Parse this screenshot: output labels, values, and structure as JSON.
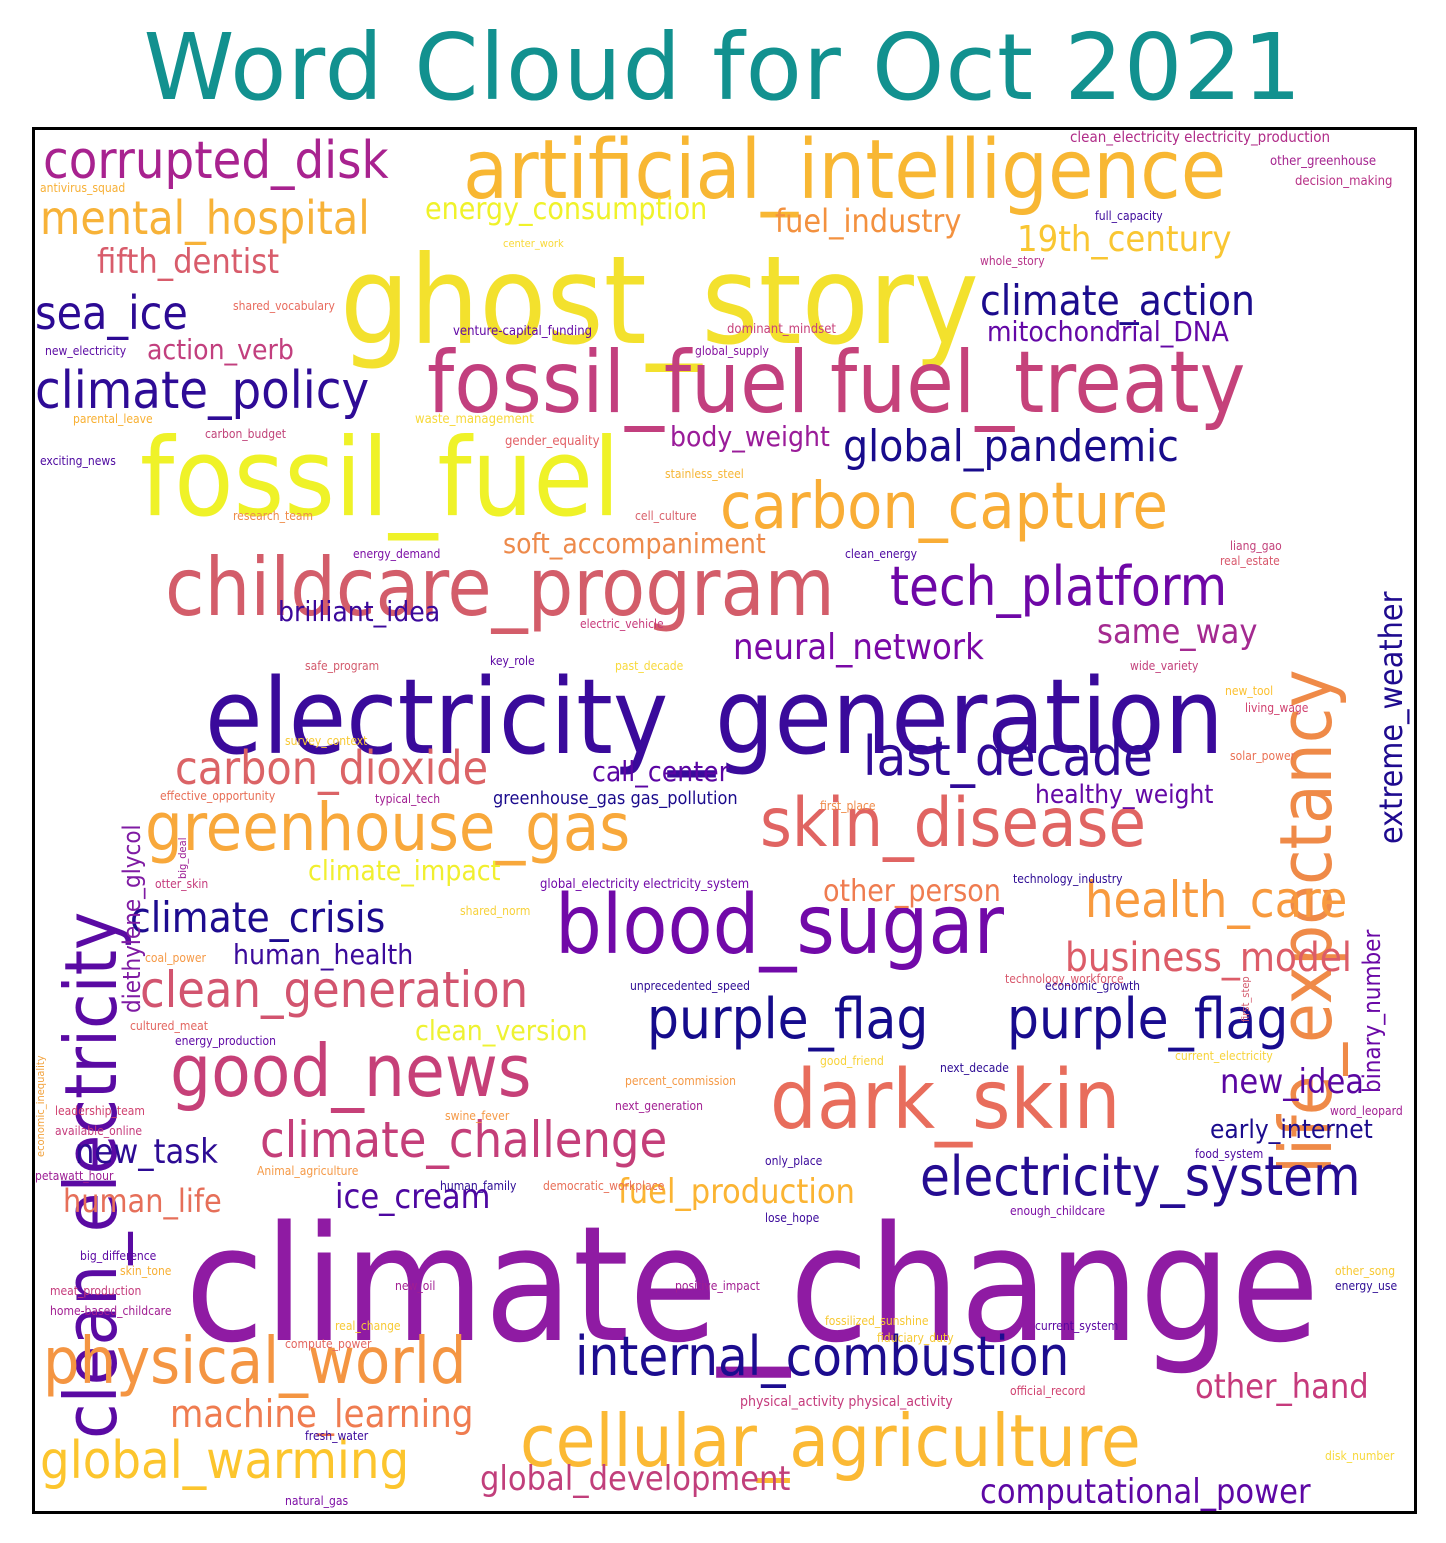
{
  "title": "Word Cloud for Oct 2021",
  "title_color": "#12918f",
  "border_color": "#000000",
  "palette": "plasma",
  "words": [
    {
      "text": "climate_change",
      "color": "#8f1ba3"
    },
    {
      "text": "electricity_generation",
      "color": "#3a0a9b"
    },
    {
      "text": "ghost_story",
      "color": "#f3e12d"
    },
    {
      "text": "fossil_fuel",
      "color": "#eff228"
    },
    {
      "text": "fossil_fuel",
      "color": "#c23f7e"
    },
    {
      "text": "fuel_treaty",
      "color": "#c5427a"
    },
    {
      "text": "artificial_intelligence",
      "color": "#f8b733"
    },
    {
      "text": "life_expectancy",
      "color": "#ef8a48"
    },
    {
      "text": "childcare_program",
      "color": "#d35d6a"
    },
    {
      "text": "clean_electricity",
      "color": "#5a0aa3"
    },
    {
      "text": "dark_skin",
      "color": "#e86d5c"
    },
    {
      "text": "blood_sugar",
      "color": "#7109a8"
    },
    {
      "text": "skin_disease",
      "color": "#e06462"
    },
    {
      "text": "cellular_agriculture",
      "color": "#fbb934"
    },
    {
      "text": "greenhouse_gas",
      "color": "#f8a83b"
    },
    {
      "text": "carbon_capture",
      "color": "#f9ad36"
    },
    {
      "text": "physical_world",
      "color": "#f49542"
    },
    {
      "text": "good_news",
      "color": "#c64078"
    },
    {
      "text": "internal_combustion",
      "color": "#1c0c8f"
    },
    {
      "text": "purple_flag",
      "color": "#150b8c"
    },
    {
      "text": "purple_flag",
      "color": "#180b8e"
    },
    {
      "text": "electricity_system",
      "color": "#250c92"
    },
    {
      "text": "tech_platform",
      "color": "#6e07a6"
    },
    {
      "text": "climate_policy",
      "color": "#2e0b96"
    },
    {
      "text": "global_warming",
      "color": "#fcc52d"
    },
    {
      "text": "corrupted_disk",
      "color": "#a8228f"
    },
    {
      "text": "last_decade",
      "color": "#2f0a97"
    },
    {
      "text": "climate_challenge",
      "color": "#c43e79"
    },
    {
      "text": "carbon_dioxide",
      "color": "#db6366"
    },
    {
      "text": "clean_generation",
      "color": "#d2546f"
    },
    {
      "text": "health_care",
      "color": "#f89a3e"
    },
    {
      "text": "mental_hospital",
      "color": "#f7b238"
    },
    {
      "text": "extreme_weather",
      "color": "#1f0b8f"
    },
    {
      "text": "climate_crisis",
      "color": "#1d0b8f"
    },
    {
      "text": "business_model",
      "color": "#dc5c68"
    },
    {
      "text": "global_pandemic",
      "color": "#180b8c"
    },
    {
      "text": "climate_action",
      "color": "#1b0b8d"
    },
    {
      "text": "sea_ice",
      "color": "#2c0a94"
    },
    {
      "text": "computational_power",
      "color": "#5d07a4"
    },
    {
      "text": "machine_learning",
      "color": "#ef7c50"
    },
    {
      "text": "global_development",
      "color": "#c13f7b"
    },
    {
      "text": "fifth_dentist",
      "color": "#d85c6b"
    },
    {
      "text": "19th_century",
      "color": "#f9c632"
    },
    {
      "text": "fuel_industry",
      "color": "#f3913f"
    },
    {
      "text": "neural_network",
      "color": "#7a08a6"
    },
    {
      "text": "same_way",
      "color": "#a42a90"
    },
    {
      "text": "fuel_production",
      "color": "#fbb433"
    },
    {
      "text": "other_hand",
      "color": "#c63a7c"
    },
    {
      "text": "new_idea",
      "color": "#5a06a1"
    },
    {
      "text": "human_life",
      "color": "#e66f59"
    },
    {
      "text": "ice_cream",
      "color": "#4d07a1"
    },
    {
      "text": "new_task",
      "color": "#2d0b94"
    },
    {
      "text": "energy_consumption",
      "color": "#f0f22a"
    },
    {
      "text": "mitochondrial_DNA",
      "color": "#6408a6"
    },
    {
      "text": "body_weight",
      "color": "#9a1c99"
    },
    {
      "text": "carbon_dioxide",
      "color": "#db6366"
    },
    {
      "text": "soft_accompaniment",
      "color": "#ed8a4b"
    },
    {
      "text": "brilliant_idea",
      "color": "#3b099b"
    },
    {
      "text": "call_center",
      "color": "#5b05a3"
    },
    {
      "text": "healthy_weight",
      "color": "#6309a6"
    },
    {
      "text": "binary_number",
      "color": "#6a08a6"
    },
    {
      "text": "diethylene_glycol",
      "color": "#7f1ba3"
    },
    {
      "text": "action_verb",
      "color": "#c23f7e"
    },
    {
      "text": "climate_impact",
      "color": "#f1ef2f"
    },
    {
      "text": "human_health",
      "color": "#3b0a9b"
    },
    {
      "text": "clean_version",
      "color": "#eef233"
    },
    {
      "text": "other_person",
      "color": "#ef7c50"
    },
    {
      "text": "early_internet",
      "color": "#1b0b8d"
    },
    {
      "text": "greenhouse_gas gas_pollution",
      "color": "#1b0b8d"
    },
    {
      "text": "clean_electricity electricity_production",
      "color": "#b02c88"
    },
    {
      "text": "other_greenhouse",
      "color": "#a4228f"
    },
    {
      "text": "decision_making",
      "color": "#b72f85"
    },
    {
      "text": "antivirus_squad",
      "color": "#f7b036"
    },
    {
      "text": "full_capacity",
      "color": "#3d099b"
    },
    {
      "text": "center_work",
      "color": "#f8d93a"
    },
    {
      "text": "whole_story",
      "color": "#b7338a"
    },
    {
      "text": "shared_vocabulary",
      "color": "#e86b5e"
    },
    {
      "text": "venture-capital_funding",
      "color": "#6209a5"
    },
    {
      "text": "dominant_mindset",
      "color": "#c7417a"
    },
    {
      "text": "new_electricity",
      "color": "#5a0aa3"
    },
    {
      "text": "global_supply",
      "color": "#8714a0"
    },
    {
      "text": "parental_leave",
      "color": "#f8b032"
    },
    {
      "text": "waste_management",
      "color": "#f7d93a"
    },
    {
      "text": "carbon_budget",
      "color": "#c14379"
    },
    {
      "text": "gender_equality",
      "color": "#e25f65"
    },
    {
      "text": "exciting_news",
      "color": "#4c079f"
    },
    {
      "text": "stainless_steel",
      "color": "#f6b636"
    },
    {
      "text": "cell_culture",
      "color": "#d9606a"
    },
    {
      "text": "research_team",
      "color": "#ee8b48"
    },
    {
      "text": "energy_demand",
      "color": "#7c0ea5"
    },
    {
      "text": "clean_energy",
      "color": "#4c07a0"
    },
    {
      "text": "liang_gao",
      "color": "#c3427b"
    },
    {
      "text": "real_estate",
      "color": "#d8586c"
    },
    {
      "text": "electric_vehicle",
      "color": "#c7397a"
    },
    {
      "text": "big_deal",
      "color": "#9c1e95"
    },
    {
      "text": "safe_program",
      "color": "#d35a6c"
    },
    {
      "text": "key_role",
      "color": "#5a05a2"
    },
    {
      "text": "past_decade",
      "color": "#f8d93b"
    },
    {
      "text": "wide_variety",
      "color": "#c3407b"
    },
    {
      "text": "new_tool",
      "color": "#fcc131"
    },
    {
      "text": "living_wage",
      "color": "#d0416f"
    },
    {
      "text": "survey_context",
      "color": "#f7c934"
    },
    {
      "text": "solar_power",
      "color": "#ea7053"
    },
    {
      "text": "effective_opportunity",
      "color": "#e86e56"
    },
    {
      "text": "typical_tech",
      "color": "#a11e92"
    },
    {
      "text": "first_place",
      "color": "#ef8a48"
    },
    {
      "text": "first_step",
      "color": "#d35a6c"
    },
    {
      "text": "economic_inequality",
      "color": "#f2a33f"
    },
    {
      "text": "otter_skin",
      "color": "#c53b7c"
    },
    {
      "text": "global_electricity electricity_system",
      "color": "#7109a8"
    },
    {
      "text": "technology_industry",
      "color": "#2d0b94"
    },
    {
      "text": "shared_norm",
      "color": "#f7d13a"
    },
    {
      "text": "coal_power",
      "color": "#f59946"
    },
    {
      "text": "technology_workforce",
      "color": "#d8586c"
    },
    {
      "text": "unprecedented_speed",
      "color": "#2d0b94"
    },
    {
      "text": "economic_growth",
      "color": "#2d0b94"
    },
    {
      "text": "cultured_meat",
      "color": "#e3655f"
    },
    {
      "text": "energy_production",
      "color": "#5d07a4"
    },
    {
      "text": "good_friend",
      "color": "#f8d33a"
    },
    {
      "text": "next_decade",
      "color": "#2d0b94"
    },
    {
      "text": "current_electricity",
      "color": "#f7d33a"
    },
    {
      "text": "percent_commission",
      "color": "#f59946"
    },
    {
      "text": "leadership_team",
      "color": "#d0416f"
    },
    {
      "text": "next_generation",
      "color": "#a11e92"
    },
    {
      "text": "word_leopard",
      "color": "#a11e92"
    },
    {
      "text": "available_online",
      "color": "#c53b7c"
    },
    {
      "text": "swine_fever",
      "color": "#f59946"
    },
    {
      "text": "food_system",
      "color": "#4c079f"
    },
    {
      "text": "petawatt_hour",
      "color": "#9c1e95"
    },
    {
      "text": "Animal_agriculture",
      "color": "#f59946"
    },
    {
      "text": "human_family",
      "color": "#2d0b94"
    },
    {
      "text": "democratic_workplace",
      "color": "#e86e56"
    },
    {
      "text": "only_place",
      "color": "#3b099b"
    },
    {
      "text": "enough_childcare",
      "color": "#7c0ea5"
    },
    {
      "text": "lose_hope",
      "color": "#3b099b"
    },
    {
      "text": "big_difference",
      "color": "#5a05a2"
    },
    {
      "text": "skin_tone",
      "color": "#f7b036"
    },
    {
      "text": "new_oil",
      "color": "#a11e92"
    },
    {
      "text": "positive_impact",
      "color": "#a11e92"
    },
    {
      "text": "other_song",
      "color": "#f7c934"
    },
    {
      "text": "meat_production",
      "color": "#c53b7c"
    },
    {
      "text": "energy_use",
      "color": "#2d0b94"
    },
    {
      "text": "home-based_childcare",
      "color": "#a11e92"
    },
    {
      "text": "real_change",
      "color": "#f7c934"
    },
    {
      "text": "fossilized_sunshine",
      "color": "#f7c934"
    },
    {
      "text": "compute_power",
      "color": "#e3655f"
    },
    {
      "text": "current_system",
      "color": "#5a05a2"
    },
    {
      "text": "fiduciary_duty",
      "color": "#f7c934"
    },
    {
      "text": "physical_activity physical_activity",
      "color": "#c53b7c"
    },
    {
      "text": "official_record",
      "color": "#d0416f"
    },
    {
      "text": "fresh_water",
      "color": "#3b099b"
    },
    {
      "text": "disk_number",
      "color": "#f8d93b"
    },
    {
      "text": "natural_gas",
      "color": "#7c0ea5"
    }
  ]
}
